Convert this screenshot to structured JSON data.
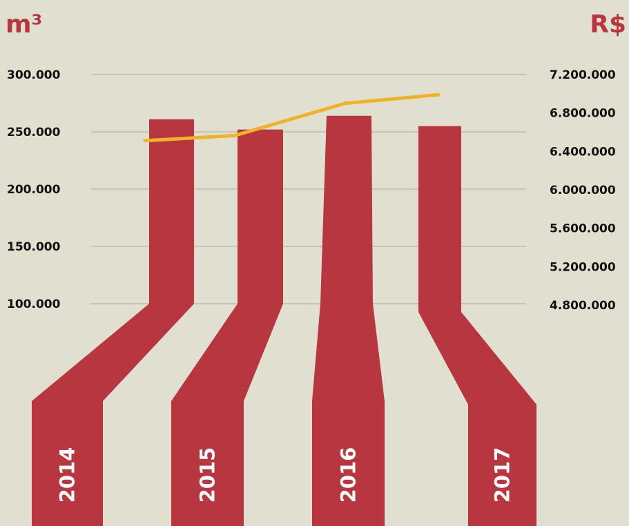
{
  "chart_data": {
    "type": "bar",
    "left_unit": "m³",
    "right_unit": "R$",
    "categories": [
      "2014",
      "2015",
      "2016",
      "2017"
    ],
    "series": [
      {
        "axis": "left",
        "values": [
          261000,
          252000,
          264000,
          255000
        ]
      },
      {
        "axis": "right",
        "values": [
          6512000,
          6565000,
          6900000,
          6990000
        ]
      }
    ],
    "y_left": {
      "ticks": [
        "100.000",
        "150.000",
        "200.000",
        "250.000",
        "300.000"
      ],
      "tick_values": [
        100000,
        150000,
        200000,
        250000,
        300000
      ],
      "ylim": [
        100000,
        300000
      ]
    },
    "y_right": {
      "ticks": [
        "7.200.000",
        "6.800.000",
        "6.400.000",
        "6.000.000",
        "5.600.000",
        "5.200.000",
        "4.800.000"
      ],
      "tick_values": [
        7200000,
        6800000,
        6400000,
        6000000,
        5600000,
        5200000,
        4800000
      ],
      "ylim": [
        4800000,
        7200000
      ]
    },
    "grid": true,
    "colors": {
      "bar": "#b73640",
      "line": "#eeb22d",
      "background": "#e1e0d0",
      "grid": "#a9a99a",
      "text": "#111111",
      "year_text": "#ffffff"
    }
  }
}
